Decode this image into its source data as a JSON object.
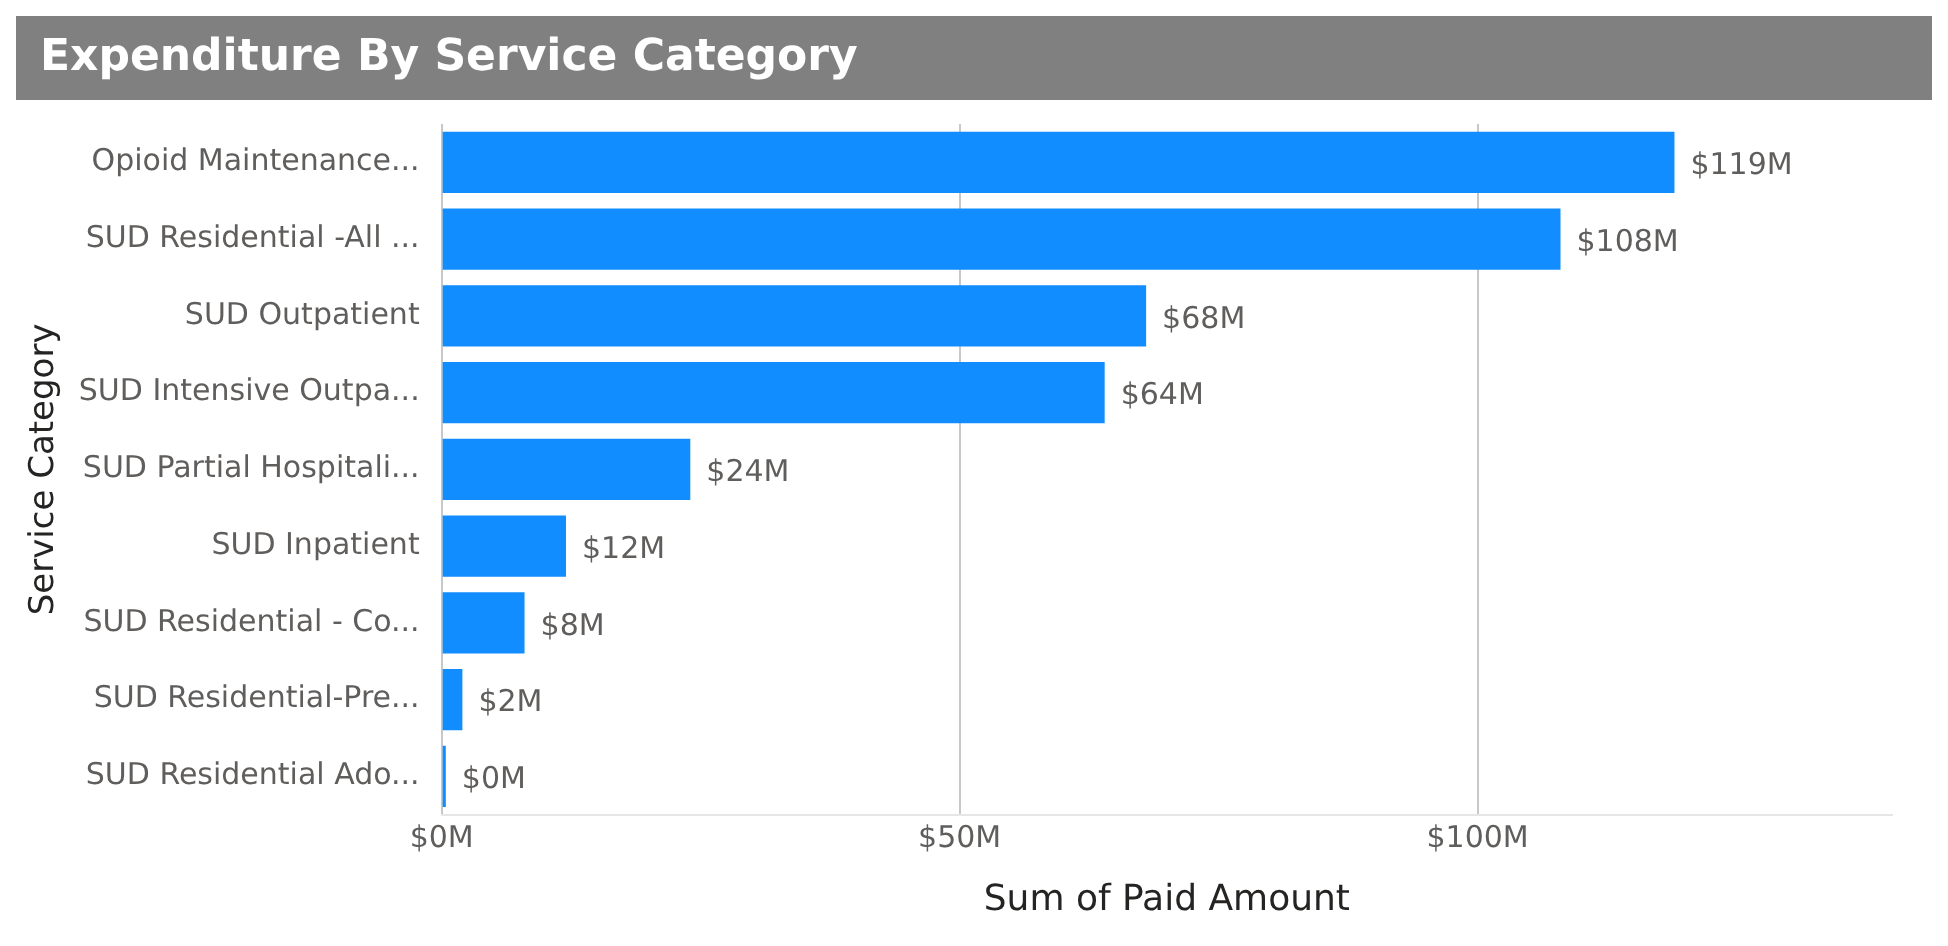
{
  "chart_data": {
    "type": "bar",
    "orientation": "horizontal",
    "title": "Expenditure By Service Category",
    "xlabel": "Sum of Paid Amount",
    "ylabel": "Service Category",
    "categories": [
      "Opioid Maintenance...",
      "SUD Residential -All ...",
      "SUD Outpatient",
      "SUD Intensive Outpa...",
      "SUD Partial Hospitali...",
      "SUD Inpatient",
      "SUD Residential - Co...",
      "SUD Residential-Pre...",
      "SUD Residential Ado..."
    ],
    "values": [
      119,
      108,
      68,
      64,
      24,
      12,
      8,
      2,
      0.4
    ],
    "value_labels": [
      "$119M",
      "$108M",
      "$68M",
      "$64M",
      "$24M",
      "$12M",
      "$8M",
      "$2M",
      "$0M"
    ],
    "color": "#118dff",
    "xlim": [
      0,
      140
    ],
    "xticks": [
      {
        "value": 0,
        "label": "$0M"
      },
      {
        "value": 50,
        "label": "$50M"
      },
      {
        "value": 100,
        "label": "$100M"
      }
    ],
    "grid": "x",
    "legend": false
  }
}
